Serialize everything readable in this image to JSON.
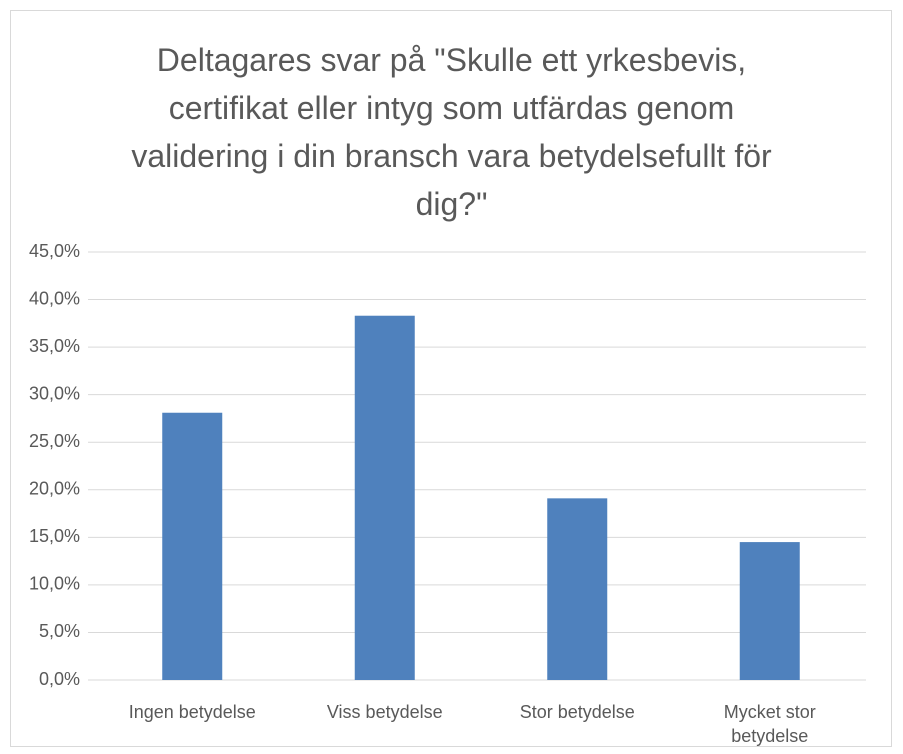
{
  "chart_data": {
    "type": "bar",
    "title": "Deltagares svar på \"Skulle ett yrkesbevis, certifikat eller intyg som utfärdas genom validering i din bransch vara betydelsefullt för dig?\"",
    "categories": [
      "Ingen betydelse",
      "Viss betydelse",
      "Stor betydelse",
      "Mycket stor betydelse"
    ],
    "values": [
      28.1,
      38.3,
      19.1,
      14.5
    ],
    "color": "#4f81bd",
    "ylim": [
      0,
      45
    ],
    "yticks": [
      {
        "value": 0,
        "label": "0,0%"
      },
      {
        "value": 5,
        "label": "5,0%"
      },
      {
        "value": 10,
        "label": "10,0%"
      },
      {
        "value": 15,
        "label": "15,0%"
      },
      {
        "value": 20,
        "label": "20,0%"
      },
      {
        "value": 25,
        "label": "25,0%"
      },
      {
        "value": 30,
        "label": "30,0%"
      },
      {
        "value": 35,
        "label": "35,0%"
      },
      {
        "value": 40,
        "label": "40,0%"
      },
      {
        "value": 45,
        "label": "45,0%"
      }
    ],
    "grid": true
  }
}
